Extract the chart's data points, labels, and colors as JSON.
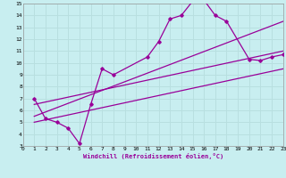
{
  "xlabel": "Windchill (Refroidissement éolien,°C)",
  "bg_color": "#c8eef0",
  "grid_color": "#b8dfe0",
  "line_color": "#990099",
  "xlim": [
    0,
    23
  ],
  "ylim": [
    3,
    15
  ],
  "xticks": [
    0,
    1,
    2,
    3,
    4,
    5,
    6,
    7,
    8,
    9,
    10,
    11,
    12,
    13,
    14,
    15,
    16,
    17,
    18,
    19,
    20,
    21,
    22,
    23
  ],
  "yticks": [
    3,
    4,
    5,
    6,
    7,
    8,
    9,
    10,
    11,
    12,
    13,
    14,
    15
  ],
  "series1_x": [
    1,
    2,
    3,
    4,
    5,
    6,
    7,
    8,
    11,
    12,
    13,
    14,
    15,
    16,
    17,
    18,
    20,
    21,
    22,
    23
  ],
  "series1_y": [
    7.0,
    5.3,
    5.0,
    4.5,
    3.2,
    6.5,
    9.5,
    9.0,
    10.5,
    11.8,
    13.7,
    14.0,
    15.2,
    15.3,
    14.0,
    13.5,
    10.3,
    10.2,
    10.5,
    10.7
  ],
  "line1_x": [
    1,
    23
  ],
  "line1_y": [
    5.5,
    13.5
  ],
  "line2_x": [
    1,
    23
  ],
  "line2_y": [
    6.5,
    11.0
  ],
  "line3_x": [
    1,
    23
  ],
  "line3_y": [
    5.0,
    9.5
  ]
}
